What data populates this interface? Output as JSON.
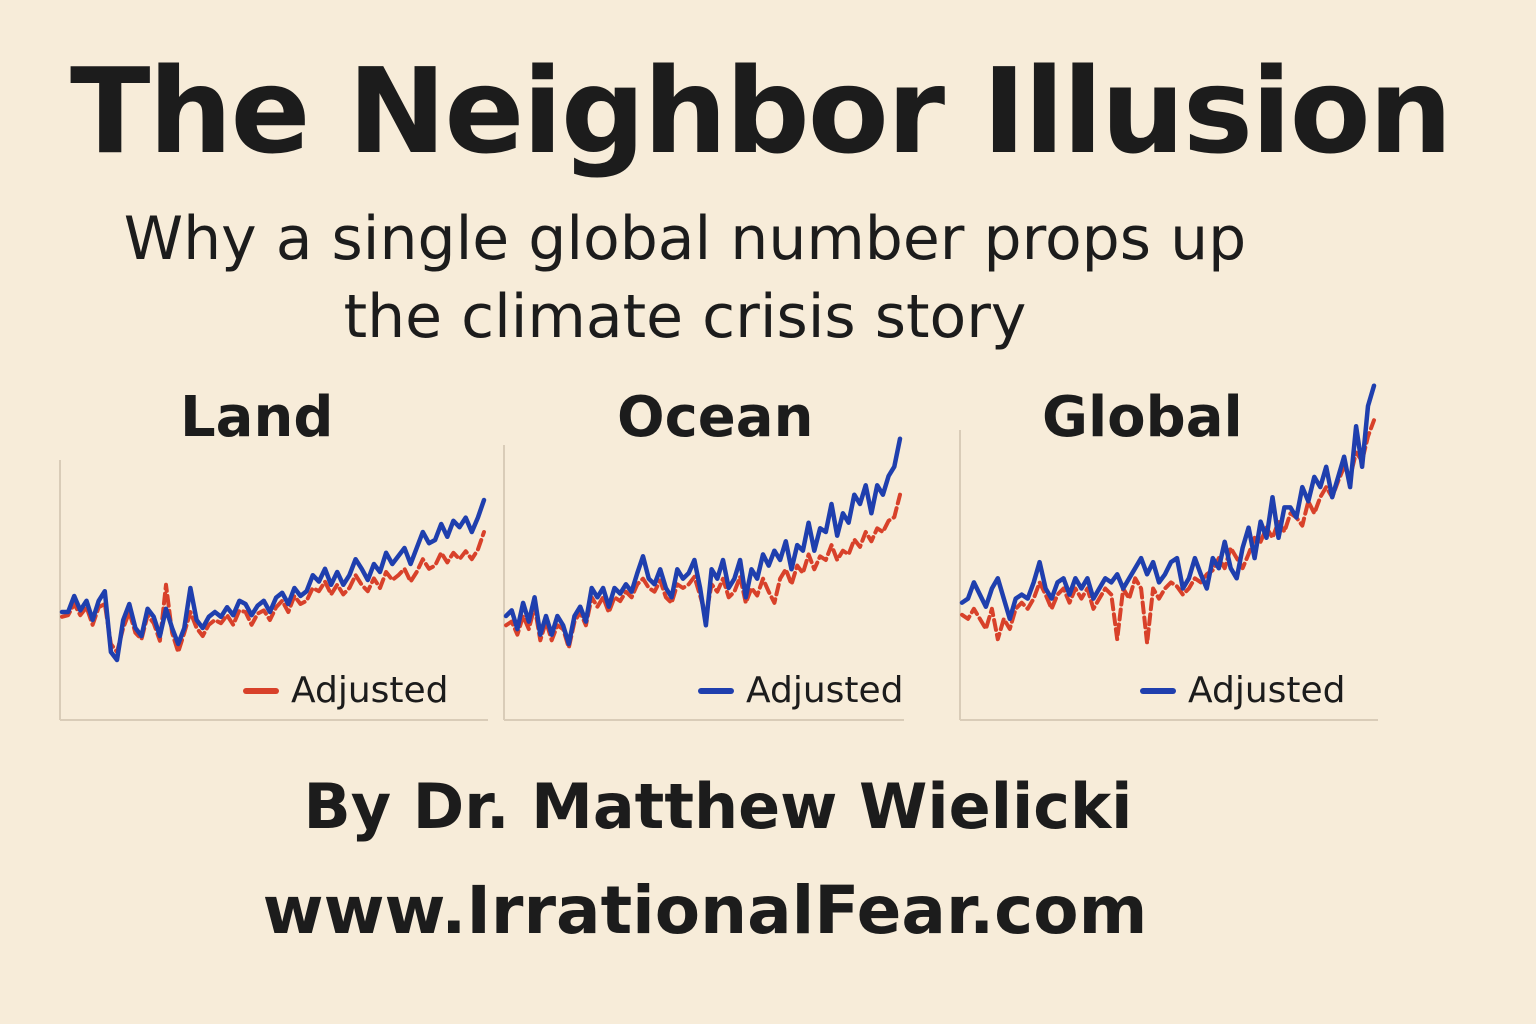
{
  "title": "The Neighbor Illusion",
  "subtitle": "Why a single global number props up the climate crisis story",
  "byline": "By Dr. Matthew Wielicki",
  "website": "www.IrrationalFear.com",
  "colors": {
    "background": "#f7ecd9",
    "blue_series": "#1f3fae",
    "red_series": "#d8412a",
    "axis": "#d9ccb8",
    "text": "#1c1c1c"
  },
  "chart_data": [
    {
      "type": "line",
      "title": "Land",
      "legend": {
        "label": "Adjusted",
        "swatch_color": "#d8412a",
        "placement": "bottom-right"
      },
      "x": [
        0,
        1,
        2,
        3,
        4,
        5,
        6,
        7,
        8,
        9,
        10,
        11,
        12,
        13,
        14,
        15,
        16,
        17,
        18,
        19,
        20,
        21,
        22,
        23,
        24,
        25,
        26,
        27,
        28,
        29,
        30,
        31,
        32,
        33,
        34,
        35,
        36,
        37,
        38,
        39,
        40,
        41,
        42,
        43,
        44,
        45,
        46,
        47,
        48,
        49,
        50,
        51,
        52,
        53,
        54,
        55,
        56,
        57,
        58,
        59,
        60,
        61,
        62,
        63,
        64,
        65,
        66,
        67,
        68,
        69
      ],
      "ylim": [
        -0.5,
        1.0
      ],
      "series": [
        {
          "color": "#1f3fae",
          "style": "solid",
          "values": [
            0.05,
            0.05,
            0.15,
            0.06,
            0.12,
            0.0,
            0.12,
            0.18,
            -0.2,
            -0.25,
            0.0,
            0.1,
            -0.05,
            -0.1,
            0.07,
            0.02,
            -0.1,
            0.07,
            -0.05,
            -0.15,
            -0.05,
            0.2,
            0.0,
            -0.05,
            0.02,
            0.05,
            0.02,
            0.08,
            0.03,
            0.12,
            0.1,
            0.03,
            0.09,
            0.12,
            0.05,
            0.14,
            0.17,
            0.1,
            0.2,
            0.15,
            0.18,
            0.28,
            0.24,
            0.32,
            0.22,
            0.3,
            0.22,
            0.28,
            0.38,
            0.32,
            0.25,
            0.35,
            0.3,
            0.42,
            0.35,
            0.4,
            0.45,
            0.35,
            0.45,
            0.55,
            0.48,
            0.5,
            0.6,
            0.52,
            0.62,
            0.58,
            0.64,
            0.55,
            0.64,
            0.75
          ]
        },
        {
          "color": "#d8412a",
          "style": "dashed",
          "values": [
            0.02,
            0.03,
            0.1,
            0.03,
            0.08,
            -0.03,
            0.08,
            0.1,
            -0.15,
            -0.2,
            -0.05,
            0.05,
            -0.08,
            -0.12,
            0.03,
            -0.02,
            -0.13,
            0.22,
            -0.08,
            -0.2,
            -0.08,
            0.05,
            -0.05,
            -0.1,
            -0.03,
            0.0,
            -0.02,
            0.03,
            -0.03,
            0.06,
            0.05,
            -0.03,
            0.04,
            0.06,
            0.0,
            0.08,
            0.12,
            0.05,
            0.15,
            0.1,
            0.12,
            0.2,
            0.18,
            0.24,
            0.16,
            0.22,
            0.16,
            0.2,
            0.28,
            0.22,
            0.18,
            0.26,
            0.2,
            0.3,
            0.25,
            0.28,
            0.32,
            0.24,
            0.3,
            0.38,
            0.32,
            0.34,
            0.42,
            0.36,
            0.42,
            0.38,
            0.43,
            0.38,
            0.44,
            0.55
          ]
        }
      ]
    },
    {
      "type": "line",
      "title": "Ocean",
      "legend": {
        "label": "Adjusted",
        "swatch_color": "#1f3fae",
        "placement": "bottom-right"
      },
      "x": [
        0,
        1,
        2,
        3,
        4,
        5,
        6,
        7,
        8,
        9,
        10,
        11,
        12,
        13,
        14,
        15,
        16,
        17,
        18,
        19,
        20,
        21,
        22,
        23,
        24,
        25,
        26,
        27,
        28,
        29,
        30,
        31,
        32,
        33,
        34,
        35,
        36,
        37,
        38,
        39,
        40,
        41,
        42,
        43,
        44,
        45,
        46,
        47,
        48,
        49,
        50,
        51,
        52,
        53,
        54,
        55,
        56,
        57,
        58,
        59,
        60,
        61,
        62,
        63,
        64,
        65,
        66,
        67,
        68,
        69
      ],
      "ylim": [
        -0.5,
        1.0
      ],
      "series": [
        {
          "color": "#1f3fae",
          "style": "solid",
          "values": [
            -0.05,
            -0.02,
            -0.12,
            0.02,
            -0.08,
            0.05,
            -0.15,
            -0.05,
            -0.15,
            -0.05,
            -0.1,
            -0.2,
            -0.05,
            0.0,
            -0.08,
            0.1,
            0.05,
            0.1,
            0.0,
            0.1,
            0.07,
            0.12,
            0.08,
            0.18,
            0.27,
            0.15,
            0.12,
            0.2,
            0.1,
            0.05,
            0.2,
            0.15,
            0.18,
            0.25,
            0.1,
            -0.1,
            0.2,
            0.15,
            0.25,
            0.1,
            0.15,
            0.25,
            0.05,
            0.2,
            0.15,
            0.28,
            0.22,
            0.3,
            0.25,
            0.35,
            0.2,
            0.33,
            0.3,
            0.45,
            0.3,
            0.42,
            0.4,
            0.55,
            0.38,
            0.5,
            0.45,
            0.6,
            0.55,
            0.65,
            0.5,
            0.65,
            0.6,
            0.7,
            0.75,
            0.9
          ]
        },
        {
          "color": "#d8412a",
          "style": "dashed",
          "values": [
            -0.1,
            -0.08,
            -0.15,
            -0.05,
            -0.12,
            0.0,
            -0.18,
            -0.08,
            -0.18,
            -0.1,
            -0.12,
            -0.22,
            -0.08,
            -0.03,
            -0.1,
            0.05,
            0.0,
            0.05,
            -0.03,
            0.05,
            0.03,
            0.08,
            0.05,
            0.12,
            0.15,
            0.1,
            0.08,
            0.14,
            0.05,
            0.02,
            0.12,
            0.1,
            0.12,
            0.16,
            0.06,
            -0.05,
            0.12,
            0.08,
            0.15,
            0.05,
            0.08,
            0.16,
            0.02,
            0.1,
            0.06,
            0.15,
            0.08,
            0.02,
            0.15,
            0.2,
            0.12,
            0.22,
            0.18,
            0.28,
            0.2,
            0.27,
            0.25,
            0.33,
            0.25,
            0.3,
            0.28,
            0.36,
            0.32,
            0.4,
            0.35,
            0.42,
            0.4,
            0.46,
            0.48,
            0.6
          ]
        }
      ]
    },
    {
      "type": "line",
      "title": "Global",
      "legend": {
        "label": "Adjusted",
        "swatch_color": "#1f3fae",
        "placement": "bottom-right"
      },
      "x": [
        0,
        1,
        2,
        3,
        4,
        5,
        6,
        7,
        8,
        9,
        10,
        11,
        12,
        13,
        14,
        15,
        16,
        17,
        18,
        19,
        20,
        21,
        22,
        23,
        24,
        25,
        26,
        27,
        28,
        29,
        30,
        31,
        32,
        33,
        34,
        35,
        36,
        37,
        38,
        39,
        40,
        41,
        42,
        43,
        44,
        45,
        46,
        47,
        48,
        49,
        50,
        51,
        52,
        53,
        54,
        55,
        56,
        57,
        58,
        59,
        60,
        61,
        62,
        63,
        64,
        65,
        66,
        67,
        68,
        69
      ],
      "ylim": [
        -0.5,
        1.3
      ],
      "series": [
        {
          "color": "#1f3fae",
          "style": "solid",
          "values": [
            -0.02,
            0.0,
            0.08,
            0.02,
            -0.04,
            0.05,
            0.1,
            0.0,
            -0.1,
            0.0,
            0.02,
            0.0,
            0.08,
            0.18,
            0.05,
            0.0,
            0.08,
            0.1,
            0.02,
            0.1,
            0.05,
            0.1,
            0.0,
            0.05,
            0.1,
            0.08,
            0.12,
            0.05,
            0.1,
            0.15,
            0.2,
            0.12,
            0.18,
            0.08,
            0.12,
            0.18,
            0.2,
            0.05,
            0.1,
            0.2,
            0.12,
            0.05,
            0.2,
            0.15,
            0.28,
            0.15,
            0.1,
            0.25,
            0.35,
            0.2,
            0.38,
            0.3,
            0.5,
            0.3,
            0.45,
            0.45,
            0.4,
            0.55,
            0.48,
            0.6,
            0.55,
            0.65,
            0.5,
            0.6,
            0.7,
            0.55,
            0.85,
            0.65,
            0.95,
            1.05
          ]
        },
        {
          "color": "#d8412a",
          "style": "dashed",
          "values": [
            -0.08,
            -0.1,
            -0.05,
            -0.1,
            -0.15,
            -0.05,
            -0.2,
            -0.1,
            -0.15,
            -0.05,
            -0.02,
            -0.05,
            0.0,
            0.08,
            0.02,
            -0.05,
            0.02,
            0.05,
            -0.02,
            0.05,
            0.0,
            0.05,
            -0.05,
            0.0,
            0.05,
            0.02,
            -0.2,
            0.05,
            0.0,
            0.1,
            0.05,
            -0.22,
            0.05,
            0.0,
            0.05,
            0.08,
            0.06,
            0.02,
            0.05,
            0.1,
            0.08,
            0.12,
            0.14,
            0.2,
            0.15,
            0.25,
            0.2,
            0.15,
            0.22,
            0.3,
            0.28,
            0.35,
            0.3,
            0.38,
            0.33,
            0.42,
            0.4,
            0.36,
            0.48,
            0.42,
            0.5,
            0.55,
            0.5,
            0.58,
            0.65,
            0.6,
            0.72,
            0.68,
            0.8,
            0.88
          ]
        }
      ]
    }
  ]
}
